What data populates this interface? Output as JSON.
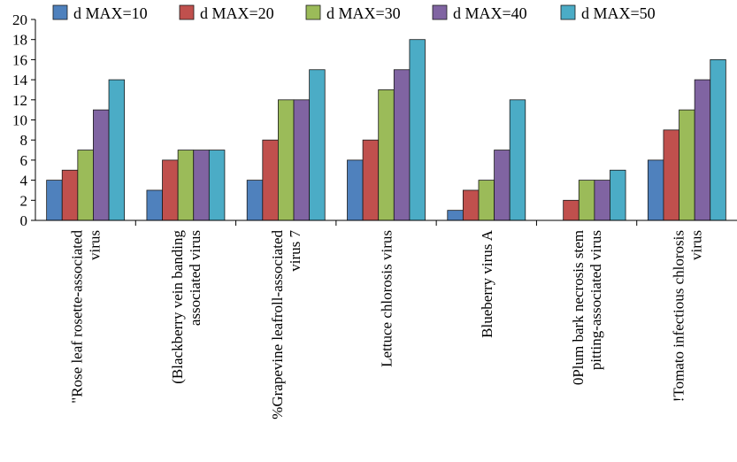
{
  "chart_data": {
    "type": "bar",
    "categories": [
      [
        "\"Rose leaf rosette-associated",
        "virus"
      ],
      [
        "(Blackberry vein banding",
        "associated virus"
      ],
      [
        "%Grapevine leafroll-associated",
        "virus 7"
      ],
      [
        "Lettuce chlorosis virus"
      ],
      [
        "Blueberry  virus A"
      ],
      [
        "0Plum bark necrosis stem",
        "pitting-associated virus"
      ],
      [
        "!Tomato infectious chlorosis",
        "virus"
      ]
    ],
    "series": [
      {
        "name": "d MAX=10",
        "color": "#4f81bd",
        "values": [
          4,
          3,
          4,
          6,
          1,
          0,
          6
        ]
      },
      {
        "name": "d MAX=20",
        "color": "#c0504d",
        "values": [
          5,
          6,
          8,
          8,
          3,
          2,
          9
        ]
      },
      {
        "name": "d MAX=30",
        "color": "#9bbb59",
        "values": [
          7,
          7,
          12,
          13,
          4,
          4,
          11
        ]
      },
      {
        "name": "d MAX=40",
        "color": "#8064a2",
        "values": [
          11,
          7,
          12,
          15,
          7,
          4,
          14
        ]
      },
      {
        "name": "d MAX=50",
        "color": "#4bacc6",
        "values": [
          14,
          7,
          15,
          18,
          12,
          5,
          16
        ]
      }
    ],
    "yticks": [
      "0",
      "2",
      "4",
      "6",
      "8",
      "10",
      "12",
      "14",
      "16",
      "18",
      "20"
    ],
    "ylim": [
      0,
      20
    ],
    "legend_position": "top",
    "grid": false
  }
}
